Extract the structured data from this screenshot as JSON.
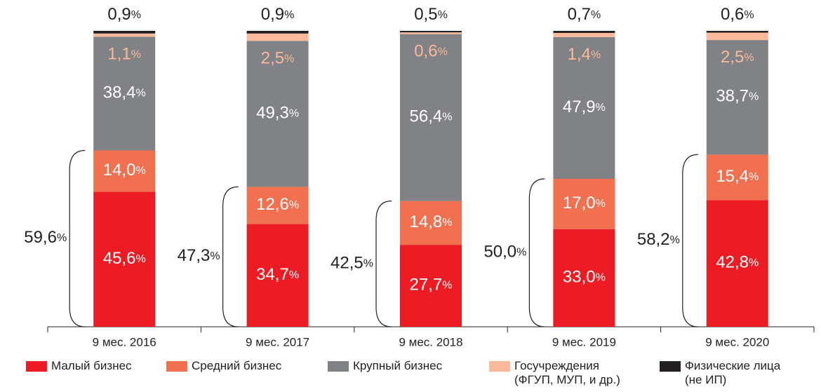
{
  "chart_data": {
    "type": "stacked_bar",
    "categories": [
      "9 мес. 2016",
      "9 мес. 2017",
      "9 мес. 2018",
      "9 мес. 2019",
      "9 мес. 2020"
    ],
    "ylim": [
      0,
      100
    ],
    "series": [
      {
        "name": "Малый бизнес",
        "color": "#ed1c24",
        "values": [
          45.6,
          34.7,
          27.7,
          33.0,
          42.8
        ],
        "value_labels": [
          "45,6%",
          "34,7%",
          "27,7%",
          "33,0%",
          "42,8%"
        ]
      },
      {
        "name": "Средний бизнес",
        "color": "#f07050",
        "values": [
          14.0,
          12.6,
          14.8,
          17.0,
          15.4
        ],
        "value_labels": [
          "14,0%",
          "12,6%",
          "14,8%",
          "17,0%",
          "15,4%"
        ]
      },
      {
        "name": "Крупный бизнес",
        "color": "#808285",
        "values": [
          38.4,
          49.3,
          56.4,
          47.9,
          38.7
        ],
        "value_labels": [
          "38,4%",
          "49,3%",
          "56,4%",
          "47,9%",
          "38,7%"
        ]
      },
      {
        "name": "Госучреждения\n(ФГУП,  МУП, и др.)",
        "color": "#f9b99a",
        "values": [
          1.1,
          2.5,
          0.6,
          1.4,
          2.5
        ],
        "value_labels": [
          "1,1%",
          "2,5%",
          "0,6%",
          "1,4%",
          "2,5%"
        ]
      },
      {
        "name": "Физические лица\n(не ИП)",
        "color": "#231f20",
        "values": [
          0.9,
          0.9,
          0.5,
          0.7,
          0.6
        ],
        "value_labels": [
          "0,9%",
          "0,9%",
          "0,5%",
          "0,7%",
          "0,6%"
        ]
      }
    ],
    "brackets": {
      "values": [
        59.6,
        47.3,
        42.5,
        50.0,
        58.2
      ],
      "value_labels": [
        "59,6%",
        "47,3%",
        "42,5%",
        "50,0%",
        "58,2%"
      ]
    }
  }
}
